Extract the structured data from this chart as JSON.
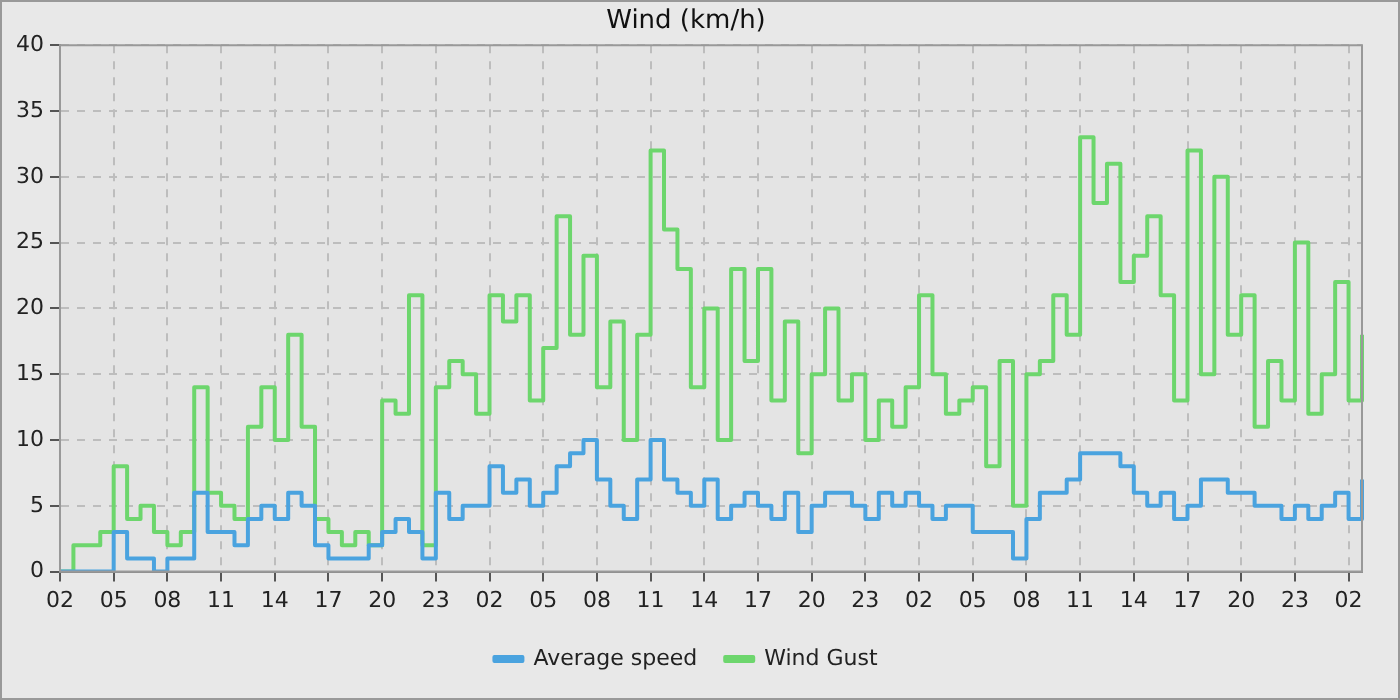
{
  "chart_data": {
    "type": "step",
    "title": "Wind (km/h)",
    "categories": [
      "02",
      null,
      null,
      null,
      "05",
      null,
      null,
      null,
      "08",
      null,
      null,
      null,
      "11",
      null,
      null,
      null,
      "14",
      null,
      null,
      null,
      "17",
      null,
      null,
      null,
      "20",
      null,
      null,
      null,
      "23",
      null,
      null,
      null,
      "02",
      null,
      null,
      null,
      "05",
      null,
      null,
      null,
      "08",
      null,
      null,
      null,
      "11",
      null,
      null,
      null,
      "14",
      null,
      null,
      null,
      "17",
      null,
      null,
      null,
      "20",
      null,
      null,
      null,
      "23",
      null,
      null,
      null,
      "02",
      null,
      null,
      null,
      "05",
      null,
      null,
      null,
      "08",
      null,
      null,
      null,
      "11",
      null,
      null,
      null,
      "14",
      null,
      null,
      null,
      "17",
      null,
      null,
      null,
      "20",
      null,
      null,
      null,
      "23",
      null,
      null,
      null,
      "02",
      null
    ],
    "series": [
      {
        "name": "Average speed",
        "color": "#4aa3df",
        "values": [
          0,
          0,
          0,
          0,
          3,
          1,
          1,
          0,
          1,
          1,
          6,
          3,
          3,
          2,
          4,
          5,
          4,
          6,
          5,
          2,
          1,
          1,
          1,
          2,
          3,
          4,
          3,
          1,
          6,
          4,
          5,
          5,
          8,
          6,
          7,
          5,
          6,
          8,
          9,
          10,
          7,
          5,
          4,
          7,
          10,
          7,
          6,
          5,
          7,
          4,
          5,
          6,
          5,
          4,
          6,
          3,
          5,
          6,
          6,
          5,
          4,
          6,
          5,
          6,
          5,
          4,
          5,
          5,
          3,
          3,
          3,
          1,
          4,
          6,
          6,
          7,
          9,
          9,
          9,
          8,
          6,
          5,
          6,
          4,
          5,
          7,
          7,
          6,
          6,
          5,
          5,
          4,
          5,
          4,
          5,
          6,
          4,
          7
        ]
      },
      {
        "name": "Wind Gust",
        "color": "#6dd66d",
        "values": [
          0,
          2,
          2,
          3,
          8,
          4,
          5,
          3,
          2,
          3,
          14,
          6,
          5,
          4,
          11,
          14,
          10,
          18,
          11,
          4,
          3,
          2,
          3,
          2,
          13,
          12,
          21,
          2,
          14,
          16,
          15,
          12,
          21,
          19,
          21,
          13,
          17,
          27,
          18,
          24,
          14,
          19,
          10,
          18,
          32,
          26,
          23,
          14,
          20,
          10,
          23,
          16,
          23,
          13,
          19,
          9,
          15,
          20,
          13,
          15,
          10,
          13,
          11,
          14,
          21,
          15,
          12,
          13,
          14,
          8,
          16,
          5,
          15,
          16,
          21,
          18,
          33,
          28,
          31,
          22,
          24,
          27,
          21,
          13,
          32,
          15,
          30,
          18,
          21,
          11,
          16,
          13,
          25,
          12,
          15,
          22,
          13,
          18
        ]
      }
    ],
    "ylim": [
      0,
      40
    ],
    "yticks": [
      0,
      5,
      10,
      15,
      20,
      25,
      30,
      35,
      40
    ],
    "grid": true,
    "legend": "bottom",
    "marker": "none",
    "line_style": "solid"
  }
}
